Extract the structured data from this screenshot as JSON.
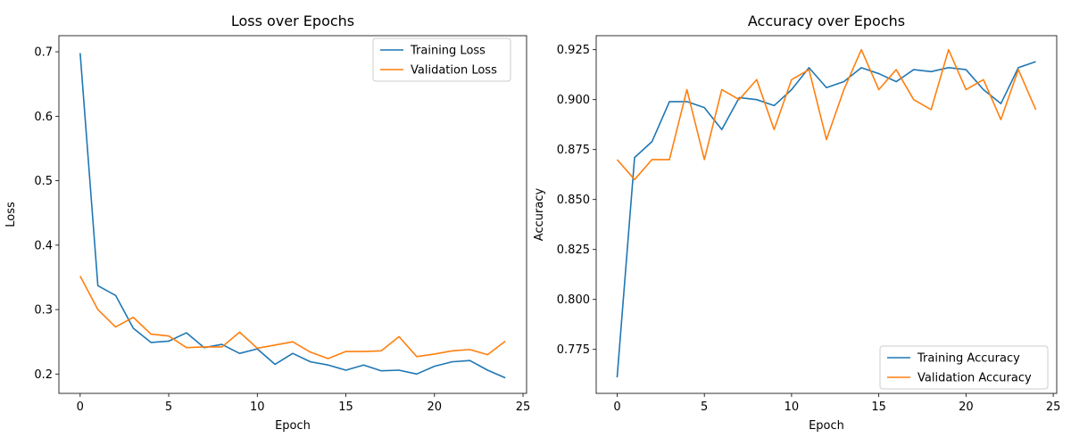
{
  "chart_data": [
    {
      "type": "line",
      "title": "Loss over Epochs",
      "xlabel": "Epoch",
      "ylabel": "Loss",
      "xlim": [
        -1.2,
        25.2
      ],
      "ylim": [
        0.17,
        0.725
      ],
      "xticks": [
        0,
        5,
        10,
        15,
        20,
        25
      ],
      "yticks": [
        0.2,
        0.3,
        0.4,
        0.5,
        0.6,
        0.7
      ],
      "ytick_decimals": 1,
      "legend_position": "upper right",
      "x": [
        0,
        1,
        2,
        3,
        4,
        5,
        6,
        7,
        8,
        9,
        10,
        11,
        12,
        13,
        14,
        15,
        16,
        17,
        18,
        19,
        20,
        21,
        22,
        23,
        24
      ],
      "series": [
        {
          "name": "Training Loss",
          "color": "#1f77b4",
          "values": [
            0.698,
            0.337,
            0.322,
            0.271,
            0.249,
            0.251,
            0.264,
            0.241,
            0.246,
            0.232,
            0.239,
            0.215,
            0.232,
            0.219,
            0.214,
            0.206,
            0.214,
            0.205,
            0.206,
            0.2,
            0.212,
            0.219,
            0.221,
            0.206,
            0.194
          ]
        },
        {
          "name": "Validation Loss",
          "color": "#ff7f0e",
          "values": [
            0.352,
            0.3,
            0.273,
            0.288,
            0.262,
            0.259,
            0.241,
            0.242,
            0.242,
            0.265,
            0.24,
            0.245,
            0.25,
            0.234,
            0.224,
            0.235,
            0.235,
            0.236,
            0.258,
            0.227,
            0.231,
            0.236,
            0.238,
            0.23,
            0.251
          ]
        }
      ]
    },
    {
      "type": "line",
      "title": "Accuracy over Epochs",
      "xlabel": "Epoch",
      "ylabel": "Accuracy",
      "xlim": [
        -1.2,
        25.2
      ],
      "ylim": [
        0.753,
        0.932
      ],
      "xticks": [
        0,
        5,
        10,
        15,
        20,
        25
      ],
      "yticks": [
        0.775,
        0.8,
        0.825,
        0.85,
        0.875,
        0.9,
        0.925
      ],
      "ytick_decimals": 3,
      "legend_position": "lower right",
      "x": [
        0,
        1,
        2,
        3,
        4,
        5,
        6,
        7,
        8,
        9,
        10,
        11,
        12,
        13,
        14,
        15,
        16,
        17,
        18,
        19,
        20,
        21,
        22,
        23,
        24
      ],
      "series": [
        {
          "name": "Training Accuracy",
          "color": "#1f77b4",
          "values": [
            0.761,
            0.871,
            0.879,
            0.899,
            0.899,
            0.896,
            0.885,
            0.901,
            0.9,
            0.897,
            0.905,
            0.916,
            0.906,
            0.909,
            0.916,
            0.913,
            0.909,
            0.915,
            0.914,
            0.916,
            0.915,
            0.905,
            0.898,
            0.916,
            0.919
          ]
        },
        {
          "name": "Validation Accuracy",
          "color": "#ff7f0e",
          "values": [
            0.87,
            0.86,
            0.87,
            0.87,
            0.905,
            0.87,
            0.905,
            0.9,
            0.91,
            0.885,
            0.91,
            0.915,
            0.88,
            0.905,
            0.925,
            0.905,
            0.915,
            0.9,
            0.895,
            0.925,
            0.905,
            0.91,
            0.89,
            0.915,
            0.895
          ]
        }
      ]
    }
  ]
}
